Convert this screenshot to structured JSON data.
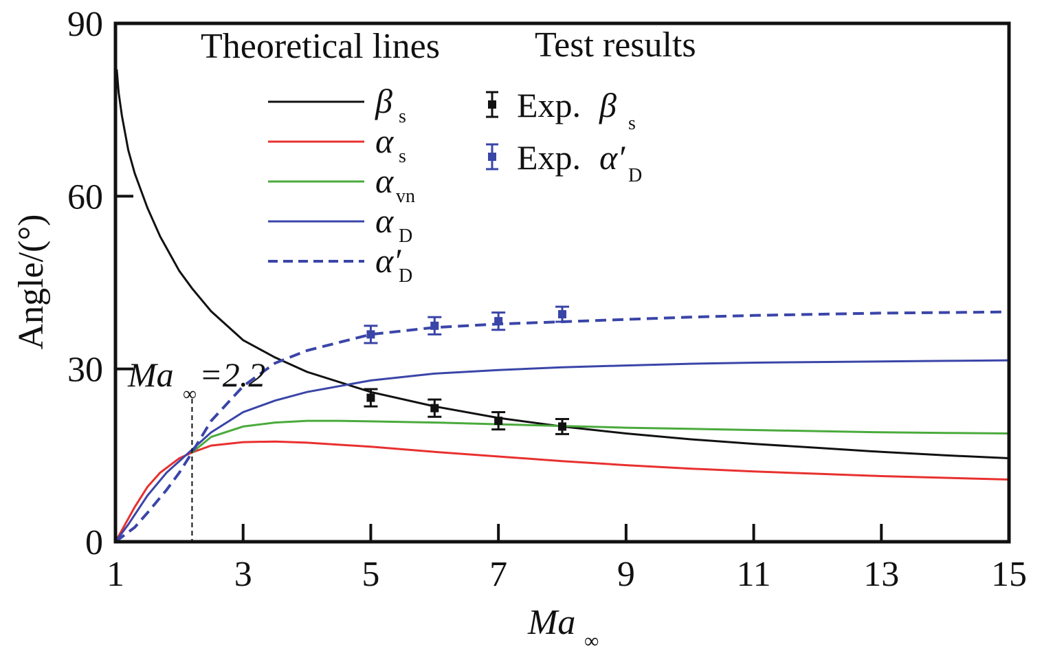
{
  "chart_data": {
    "type": "line",
    "xlabel": "Ma",
    "xlabel_sub": "∞",
    "ylabel": "Angle/(°)",
    "xlim": [
      1,
      15
    ],
    "ylim": [
      0,
      90
    ],
    "xticks": [
      1,
      3,
      5,
      7,
      9,
      11,
      13,
      15
    ],
    "yticks": [
      0,
      30,
      60,
      90
    ],
    "legend": {
      "theoretical_title": "Theoretical lines",
      "test_title": "Test results"
    },
    "series": [
      {
        "name": "β",
        "sub": "s",
        "prime": false,
        "color": "#111111",
        "style": "solid",
        "x": [
          1.02,
          1.05,
          1.1,
          1.2,
          1.3,
          1.5,
          1.7,
          2.0,
          2.2,
          2.5,
          3.0,
          3.5,
          4.0,
          5.0,
          6.0,
          7.0,
          8.0,
          9.0,
          10.0,
          11.0,
          12.0,
          13.0,
          14.0,
          15.0
        ],
        "y": [
          82,
          78,
          74,
          68,
          64,
          58,
          53,
          47,
          44,
          40,
          35,
          32,
          29.5,
          26,
          23.5,
          21.5,
          20,
          18.8,
          17.8,
          17,
          16.3,
          15.6,
          15,
          14.5
        ]
      },
      {
        "name": "α",
        "sub": "s",
        "prime": false,
        "color": "#e8302e",
        "style": "solid",
        "x": [
          1.0,
          1.1,
          1.3,
          1.5,
          1.7,
          2.0,
          2.2,
          2.5,
          3.0,
          3.5,
          4.0,
          5.0,
          6.0,
          7.0,
          8.0,
          9.0,
          10.0,
          11.0,
          12.0,
          13.0,
          14.0,
          15.0
        ],
        "y": [
          0,
          2,
          6,
          9.5,
          12,
          14.5,
          15.5,
          16.7,
          17.3,
          17.4,
          17.2,
          16.5,
          15.6,
          14.8,
          14,
          13.3,
          12.7,
          12.2,
          11.8,
          11.4,
          11.1,
          10.8
        ]
      },
      {
        "name": "α",
        "sub": "vn",
        "prime": false,
        "color": "#4aaa3c",
        "style": "solid",
        "x": [
          2.2,
          2.5,
          3.0,
          3.5,
          4.0,
          4.5,
          5.0,
          6.0,
          7.0,
          8.0,
          9.0,
          10.0,
          11.0,
          12.0,
          13.0,
          14.0,
          15.0
        ],
        "y": [
          15.5,
          18.2,
          20,
          20.7,
          21,
          21,
          20.9,
          20.7,
          20.4,
          20.1,
          19.8,
          19.6,
          19.4,
          19.2,
          19.0,
          18.9,
          18.8
        ]
      },
      {
        "name": "α",
        "sub": "D",
        "prime": false,
        "color": "#3a45a8",
        "style": "solid",
        "x": [
          1.0,
          1.2,
          1.5,
          1.8,
          2.0,
          2.2,
          2.5,
          3.0,
          3.5,
          4.0,
          5.0,
          6.0,
          7.0,
          8.0,
          9.0,
          10.0,
          11.0,
          12.0,
          13.0,
          14.0,
          15.0
        ],
        "y": [
          0,
          3,
          8,
          12,
          14,
          16,
          19,
          22.5,
          24.5,
          26,
          28,
          29.2,
          29.8,
          30.3,
          30.6,
          30.9,
          31.1,
          31.2,
          31.3,
          31.4,
          31.5
        ]
      },
      {
        "name": "α",
        "sub": "D",
        "prime": true,
        "color": "#3a45a8",
        "style": "dashed",
        "x": [
          1.0,
          1.3,
          1.5,
          1.8,
          2.0,
          2.2,
          2.5,
          3.0,
          3.5,
          4.0,
          5.0,
          6.0,
          7.0,
          8.0,
          9.0,
          10.0,
          11.0,
          12.0,
          13.0,
          14.0,
          15.0
        ],
        "y": [
          0,
          2.5,
          5,
          9,
          12,
          15.5,
          21,
          27,
          31,
          33.2,
          36,
          37.2,
          37.8,
          38.2,
          38.6,
          39,
          39.3,
          39.5,
          39.7,
          39.8,
          39.9
        ]
      }
    ],
    "experiments": [
      {
        "name": "Exp.",
        "symbol": "β",
        "sub": "s",
        "prime": false,
        "color": "#111111",
        "x": [
          5,
          6,
          7,
          8
        ],
        "y": [
          25,
          23.2,
          21,
          20
        ],
        "err": [
          1.5,
          1.5,
          1.5,
          1.3
        ]
      },
      {
        "name": "Exp.",
        "symbol": "α",
        "sub": "D",
        "prime": true,
        "color": "#3a45a8",
        "x": [
          5,
          6,
          7,
          8
        ],
        "y": [
          36,
          37.5,
          38.3,
          39.5
        ],
        "err": [
          1.5,
          1.5,
          1.5,
          1.3
        ]
      }
    ],
    "annotation": {
      "text_main": "Ma",
      "text_sub": "∞",
      "text_value": "=2.2",
      "x": 2.2
    }
  }
}
